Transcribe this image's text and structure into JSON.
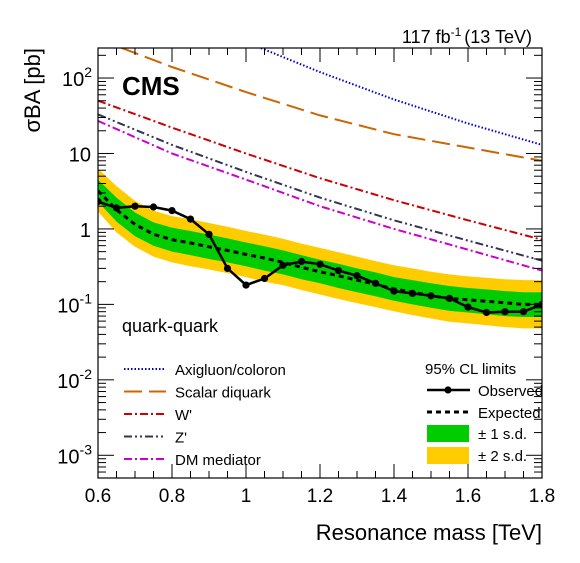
{
  "chart_data": {
    "type": "line",
    "lumi_label": "117 fb",
    "lumi_sup": "-1",
    "lumi_energy": "(13 TeV)",
    "experiment_label": "CMS",
    "channel_label": "quark-quark",
    "xlabel": "Resonance mass [TeV]",
    "ylabel": "σBA [pb]",
    "xlim": [
      0.6,
      1.8
    ],
    "ylim": [
      0.0005,
      250
    ],
    "yscale": "log",
    "x_ticks": [
      "0.6",
      "0.8",
      "1",
      "1.2",
      "1.4",
      "1.6",
      "1.8"
    ],
    "y_ticks": [
      {
        "base": "10",
        "exp": "-3"
      },
      {
        "base": "10",
        "exp": "-2"
      },
      {
        "base": "10",
        "exp": "-1"
      },
      {
        "base": "1",
        "exp": ""
      },
      {
        "base": "10",
        "exp": ""
      },
      {
        "base": "10",
        "exp": "2"
      }
    ],
    "models_legend_title": "",
    "limits_legend_title": "95% CL limits",
    "theory_models": [
      {
        "name": "Axigluon/coloron",
        "color": "#0000cc",
        "dash": "1.5,2",
        "x": [
          0.6,
          0.8,
          1.0,
          1.2,
          1.4,
          1.6,
          1.8
        ],
        "y": [
          2300,
          800,
          300,
          120,
          52,
          25,
          13
        ]
      },
      {
        "name": "Scalar diquark",
        "color": "#cc6600",
        "dash": "18,7",
        "x": [
          0.6,
          0.8,
          1.0,
          1.2,
          1.4,
          1.6,
          1.8
        ],
        "y": [
          330,
          140,
          65,
          32,
          18,
          12,
          8
        ]
      },
      {
        "name": "W'",
        "color": "#cc0000",
        "dash": "8,3,2,3",
        "x": [
          0.6,
          0.8,
          1.0,
          1.2,
          1.4,
          1.6,
          1.8
        ],
        "y": [
          50,
          22,
          10,
          4.7,
          2.4,
          1.3,
          0.72
        ]
      },
      {
        "name": "Z'",
        "color": "#333355",
        "dash": "8,3,2,3,2,3",
        "x": [
          0.6,
          0.8,
          1.0,
          1.2,
          1.4,
          1.6,
          1.8
        ],
        "y": [
          33,
          13,
          5.7,
          2.6,
          1.3,
          0.7,
          0.38
        ]
      },
      {
        "name": "DM mediator",
        "color": "#cc00cc",
        "dash": "8,3,2,3",
        "x": [
          0.6,
          0.8,
          1.0,
          1.2,
          1.4,
          1.6,
          1.8
        ],
        "y": [
          27,
          10,
          4.5,
          2.0,
          1.0,
          0.53,
          0.28
        ]
      }
    ],
    "observed": {
      "name": "Observed",
      "color": "#000000",
      "x": [
        0.6,
        0.65,
        0.7,
        0.75,
        0.8,
        0.85,
        0.9,
        0.95,
        1.0,
        1.05,
        1.1,
        1.15,
        1.2,
        1.25,
        1.3,
        1.35,
        1.4,
        1.45,
        1.5,
        1.55,
        1.6,
        1.65,
        1.7,
        1.75,
        1.8
      ],
      "y": [
        2.3,
        1.9,
        2.0,
        1.95,
        1.75,
        1.35,
        0.85,
        0.3,
        0.18,
        0.22,
        0.33,
        0.37,
        0.34,
        0.28,
        0.24,
        0.19,
        0.15,
        0.14,
        0.13,
        0.12,
        0.092,
        0.078,
        0.08,
        0.08,
        0.1
      ]
    },
    "expected": {
      "name": "Expected",
      "color": "#000000",
      "x": [
        0.6,
        0.65,
        0.7,
        0.75,
        0.8,
        0.85,
        0.9,
        0.95,
        1.0,
        1.05,
        1.1,
        1.15,
        1.2,
        1.25,
        1.3,
        1.35,
        1.4,
        1.45,
        1.5,
        1.55,
        1.6,
        1.65,
        1.7,
        1.75,
        1.8
      ],
      "y": [
        3.2,
        1.8,
        1.15,
        0.85,
        0.72,
        0.65,
        0.58,
        0.52,
        0.46,
        0.41,
        0.36,
        0.31,
        0.27,
        0.24,
        0.21,
        0.185,
        0.16,
        0.145,
        0.13,
        0.12,
        0.115,
        0.11,
        0.105,
        0.1,
        0.1
      ]
    },
    "band_1sd": {
      "name": "± 1 s.d.",
      "color": "#00cc00",
      "x": [
        0.6,
        0.65,
        0.7,
        0.75,
        0.8,
        0.85,
        0.9,
        0.95,
        1.0,
        1.05,
        1.1,
        1.15,
        1.2,
        1.25,
        1.3,
        1.35,
        1.4,
        1.45,
        1.5,
        1.55,
        1.6,
        1.65,
        1.7,
        1.75,
        1.8
      ],
      "low": [
        2.3,
        1.25,
        0.8,
        0.6,
        0.5,
        0.45,
        0.4,
        0.36,
        0.32,
        0.28,
        0.25,
        0.215,
        0.19,
        0.165,
        0.145,
        0.128,
        0.112,
        0.1,
        0.09,
        0.082,
        0.078,
        0.074,
        0.07,
        0.068,
        0.068
      ],
      "high": [
        4.5,
        2.6,
        1.65,
        1.22,
        1.04,
        0.94,
        0.84,
        0.75,
        0.66,
        0.59,
        0.52,
        0.45,
        0.39,
        0.345,
        0.3,
        0.265,
        0.23,
        0.21,
        0.19,
        0.175,
        0.165,
        0.158,
        0.15,
        0.145,
        0.145
      ]
    },
    "band_2sd": {
      "name": "± 2 s.d.",
      "color": "#ffcc00",
      "x": [
        0.6,
        0.65,
        0.7,
        0.75,
        0.8,
        0.85,
        0.9,
        0.95,
        1.0,
        1.05,
        1.1,
        1.15,
        1.2,
        1.25,
        1.3,
        1.35,
        1.4,
        1.45,
        1.5,
        1.55,
        1.6,
        1.65,
        1.7,
        1.75,
        1.8
      ],
      "low": [
        1.7,
        0.9,
        0.58,
        0.43,
        0.36,
        0.32,
        0.29,
        0.26,
        0.23,
        0.2,
        0.18,
        0.155,
        0.135,
        0.118,
        0.104,
        0.092,
        0.081,
        0.072,
        0.065,
        0.059,
        0.056,
        0.053,
        0.05,
        0.048,
        0.048
      ],
      "high": [
        6.3,
        3.7,
        2.35,
        1.75,
        1.48,
        1.34,
        1.2,
        1.07,
        0.94,
        0.84,
        0.74,
        0.64,
        0.56,
        0.49,
        0.43,
        0.375,
        0.33,
        0.3,
        0.27,
        0.25,
        0.235,
        0.225,
        0.215,
        0.21,
        0.21
      ]
    }
  }
}
